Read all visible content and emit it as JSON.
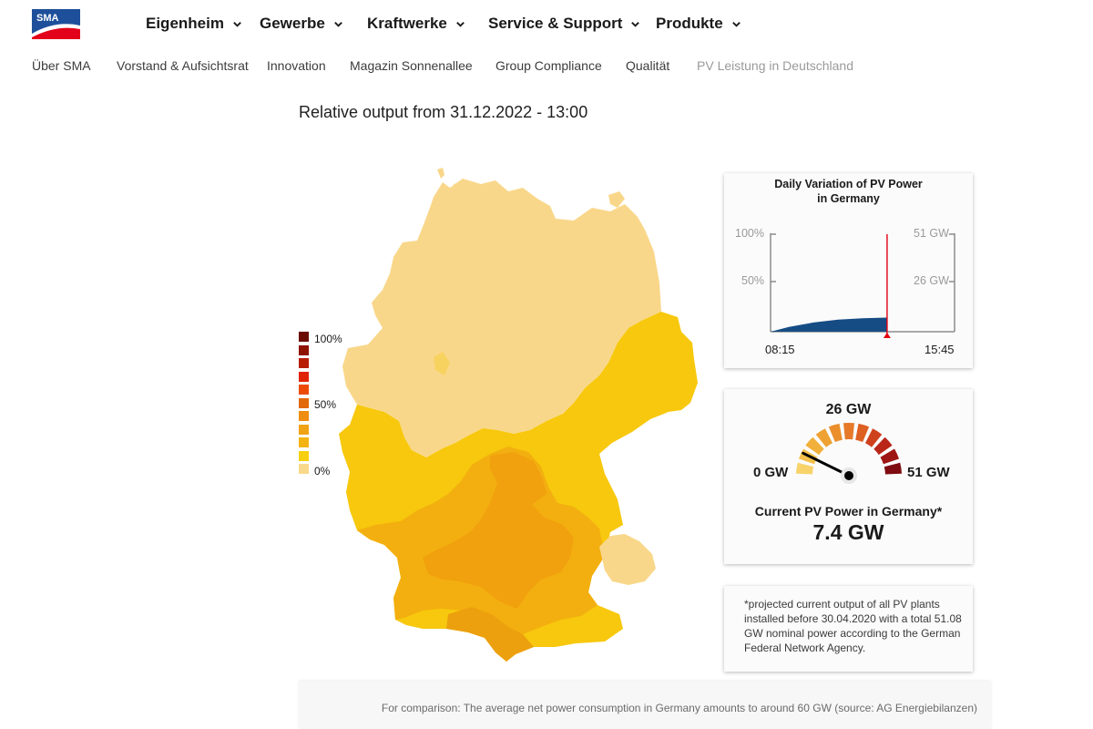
{
  "brand": {
    "logo_text": "SMA",
    "color": "#1e4f9a",
    "accent": "#e2001a"
  },
  "mainnav": [
    {
      "label": "Eigenheim"
    },
    {
      "label": "Gewerbe"
    },
    {
      "label": "Kraftwerke"
    },
    {
      "label": "Service & Support"
    },
    {
      "label": "Produkte"
    }
  ],
  "subnav": [
    {
      "label": "Über SMA",
      "active": false
    },
    {
      "label": "Vorstand & Aufsichtsrat",
      "active": false
    },
    {
      "label": "Innovation",
      "active": false
    },
    {
      "label": "Magazin Sonnenallee",
      "active": false
    },
    {
      "label": "Group Compliance",
      "active": false
    },
    {
      "label": "Qualität",
      "active": false
    },
    {
      "label": "PV Leistung in Deutschland",
      "active": true
    }
  ],
  "headline": "Relative output from 31.12.2022 - 13:00",
  "legend": {
    "label_top": "100%",
    "label_mid": "50%",
    "label_bottom": "0%",
    "colors": [
      "#6b0a00",
      "#8e1200",
      "#b71f00",
      "#e02300",
      "#ec4b06",
      "#e2690a",
      "#ee8d12",
      "#f0a316",
      "#f3b413",
      "#f7cf10",
      "#f8d98b"
    ]
  },
  "daily_chart": {
    "title_line1": "Daily Variation of PV Power",
    "title_line2": "in Germany",
    "left_ticks": [
      "100%",
      "50%"
    ],
    "right_ticks": [
      "51 GW",
      "26 GW"
    ],
    "x_start": "08:15",
    "x_end": "15:45",
    "area_color": "#164c84",
    "marker_color": "#e3000f",
    "chart_data": {
      "type": "area",
      "x": [
        "08:15",
        "09:00",
        "10:00",
        "11:00",
        "12:00",
        "13:00"
      ],
      "y": [
        0.0,
        2.5,
        4.8,
        6.3,
        7.0,
        7.4
      ],
      "ylabel_left": "%",
      "ylabel_right": "GW",
      "ylim": [
        0,
        51
      ],
      "xlim": [
        "08:15",
        "15:45"
      ],
      "current": "13:00"
    }
  },
  "gauge": {
    "top_label": "26 GW",
    "min_label": "0 GW",
    "max_label": "51 GW",
    "caption": "Current PV Power in Germany*",
    "current_value": "7.4 GW",
    "value": 7.4,
    "max": 51,
    "segment_colors": [
      "#f7d36a",
      "#f4c04c",
      "#f1b03a",
      "#eea233",
      "#ea8f2c",
      "#e67a28",
      "#de5f22",
      "#cf401d",
      "#b92618",
      "#9d1614",
      "#7e0c10"
    ]
  },
  "footnote": "*projected current output of all PV plants installed before 30.04.2020 with a total 51.08 GW nominal power according to the German Federal Network Agency.",
  "footer": "For comparison: The average net power consumption in Germany amounts to around 60 GW (source: AG Energiebilanzen)",
  "map_colors": {
    "north": "#f9d78a",
    "middle": "#f7c80d",
    "south_a": "#f3af0f",
    "south_b": "#f0a10d",
    "south_c": "#eca00e"
  }
}
